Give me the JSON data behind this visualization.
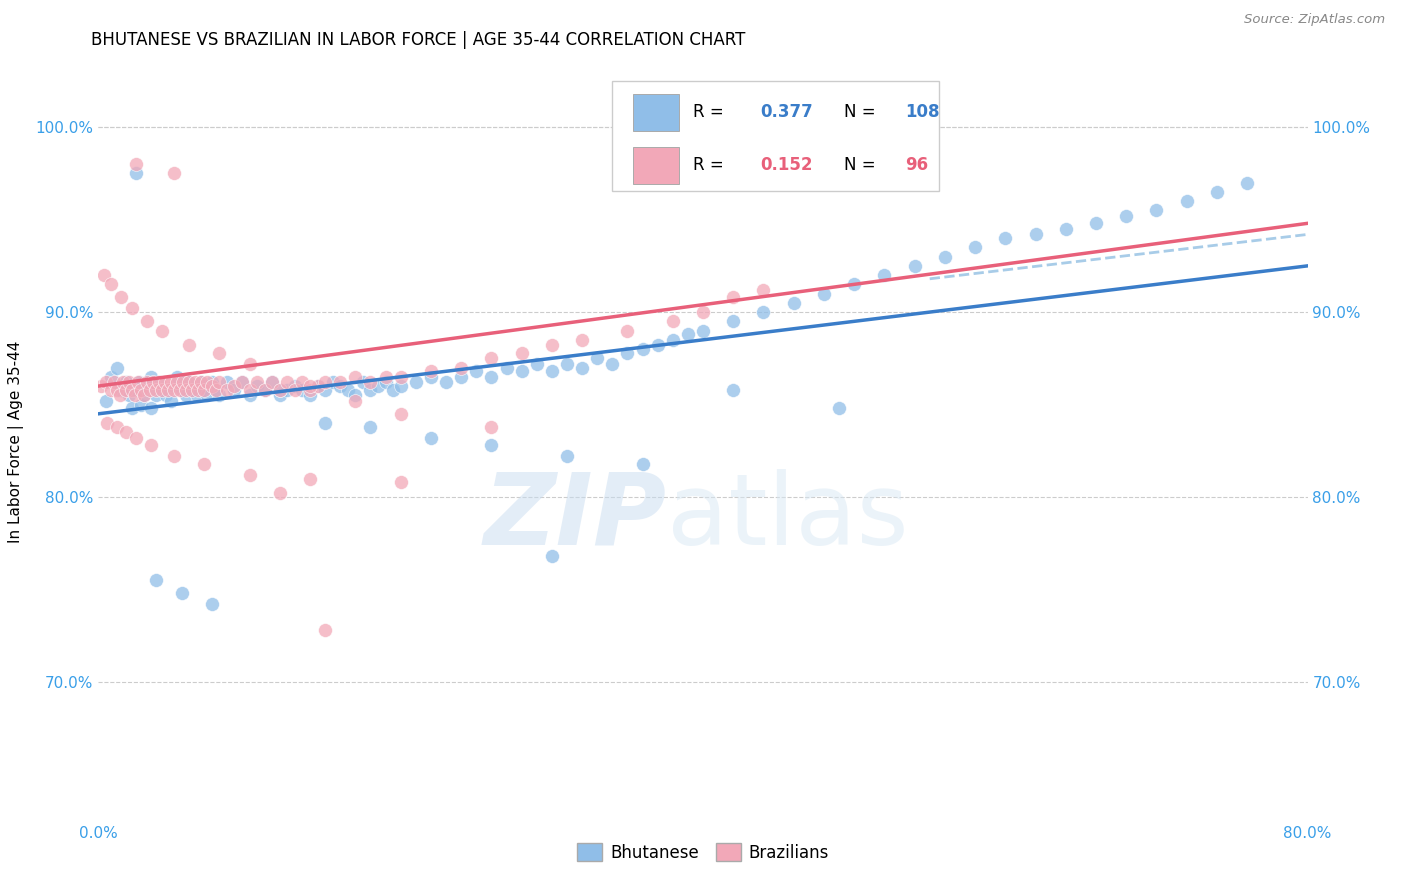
{
  "title": "BHUTANESE VS BRAZILIAN IN LABOR FORCE | AGE 35-44 CORRELATION CHART",
  "source": "Source: ZipAtlas.com",
  "ylabel": "In Labor Force | Age 35-44",
  "xlim": [
    0.0,
    0.8
  ],
  "ylim": [
    0.625,
    1.035
  ],
  "xticks": [
    0.0,
    0.1,
    0.2,
    0.3,
    0.4,
    0.5,
    0.6,
    0.7,
    0.8
  ],
  "xticklabels": [
    "0.0%",
    "",
    "",
    "",
    "",
    "",
    "",
    "",
    "80.0%"
  ],
  "yticks": [
    0.7,
    0.8,
    0.9,
    1.0
  ],
  "yticklabels": [
    "70.0%",
    "80.0%",
    "90.0%",
    "100.0%"
  ],
  "blue_color": "#90BEE8",
  "pink_color": "#F2A8B8",
  "trend_blue": "#3A7DC9",
  "trend_pink": "#E8607A",
  "trend_dashed_color": "#A8CCE8",
  "watermark_zip": "ZIP",
  "watermark_atlas": "atlas",
  "blue_scatter_x": [
    0.005,
    0.008,
    0.012,
    0.015,
    0.018,
    0.02,
    0.022,
    0.025,
    0.027,
    0.028,
    0.03,
    0.032,
    0.035,
    0.035,
    0.038,
    0.04,
    0.042,
    0.045,
    0.048,
    0.05,
    0.052,
    0.055,
    0.058,
    0.06,
    0.062,
    0.065,
    0.068,
    0.07,
    0.072,
    0.075,
    0.078,
    0.08,
    0.085,
    0.09,
    0.095,
    0.1,
    0.105,
    0.11,
    0.115,
    0.12,
    0.125,
    0.13,
    0.135,
    0.14,
    0.145,
    0.15,
    0.155,
    0.16,
    0.165,
    0.17,
    0.175,
    0.18,
    0.185,
    0.19,
    0.195,
    0.2,
    0.21,
    0.22,
    0.23,
    0.24,
    0.25,
    0.26,
    0.27,
    0.28,
    0.29,
    0.3,
    0.31,
    0.32,
    0.33,
    0.34,
    0.35,
    0.36,
    0.37,
    0.38,
    0.39,
    0.4,
    0.42,
    0.44,
    0.46,
    0.48,
    0.5,
    0.52,
    0.54,
    0.56,
    0.58,
    0.6,
    0.62,
    0.64,
    0.66,
    0.68,
    0.7,
    0.72,
    0.74,
    0.76,
    0.3,
    0.025,
    0.038,
    0.055,
    0.075,
    0.12,
    0.15,
    0.18,
    0.22,
    0.26,
    0.31,
    0.36,
    0.42,
    0.49
  ],
  "blue_scatter_y": [
    0.852,
    0.865,
    0.87,
    0.858,
    0.862,
    0.855,
    0.848,
    0.858,
    0.862,
    0.85,
    0.855,
    0.86,
    0.865,
    0.848,
    0.855,
    0.862,
    0.858,
    0.855,
    0.852,
    0.86,
    0.865,
    0.858,
    0.855,
    0.862,
    0.858,
    0.855,
    0.862,
    0.858,
    0.855,
    0.862,
    0.858,
    0.855,
    0.862,
    0.858,
    0.862,
    0.855,
    0.86,
    0.858,
    0.862,
    0.855,
    0.858,
    0.86,
    0.858,
    0.855,
    0.86,
    0.858,
    0.862,
    0.86,
    0.858,
    0.855,
    0.862,
    0.858,
    0.86,
    0.862,
    0.858,
    0.86,
    0.862,
    0.865,
    0.862,
    0.865,
    0.868,
    0.865,
    0.87,
    0.868,
    0.872,
    0.868,
    0.872,
    0.87,
    0.875,
    0.872,
    0.878,
    0.88,
    0.882,
    0.885,
    0.888,
    0.89,
    0.895,
    0.9,
    0.905,
    0.91,
    0.915,
    0.92,
    0.925,
    0.93,
    0.935,
    0.94,
    0.942,
    0.945,
    0.948,
    0.952,
    0.955,
    0.96,
    0.965,
    0.97,
    0.768,
    0.975,
    0.755,
    0.748,
    0.742,
    0.858,
    0.84,
    0.838,
    0.832,
    0.828,
    0.822,
    0.818,
    0.858,
    0.848
  ],
  "pink_scatter_x": [
    0.002,
    0.005,
    0.008,
    0.01,
    0.012,
    0.014,
    0.016,
    0.018,
    0.02,
    0.022,
    0.024,
    0.026,
    0.028,
    0.03,
    0.032,
    0.034,
    0.036,
    0.038,
    0.04,
    0.042,
    0.044,
    0.046,
    0.048,
    0.05,
    0.052,
    0.054,
    0.056,
    0.058,
    0.06,
    0.062,
    0.064,
    0.066,
    0.068,
    0.07,
    0.072,
    0.075,
    0.078,
    0.08,
    0.085,
    0.09,
    0.095,
    0.1,
    0.105,
    0.11,
    0.115,
    0.12,
    0.125,
    0.13,
    0.135,
    0.14,
    0.145,
    0.15,
    0.16,
    0.17,
    0.18,
    0.19,
    0.2,
    0.22,
    0.24,
    0.26,
    0.28,
    0.3,
    0.32,
    0.35,
    0.38,
    0.4,
    0.42,
    0.44,
    0.006,
    0.012,
    0.018,
    0.025,
    0.035,
    0.05,
    0.07,
    0.1,
    0.004,
    0.008,
    0.015,
    0.022,
    0.032,
    0.042,
    0.06,
    0.08,
    0.1,
    0.14,
    0.17,
    0.2,
    0.26,
    0.14,
    0.2,
    0.12,
    0.025,
    0.05,
    0.15
  ],
  "pink_scatter_y": [
    0.86,
    0.862,
    0.858,
    0.862,
    0.858,
    0.855,
    0.862,
    0.858,
    0.862,
    0.858,
    0.855,
    0.862,
    0.858,
    0.855,
    0.862,
    0.858,
    0.862,
    0.858,
    0.862,
    0.858,
    0.862,
    0.858,
    0.862,
    0.858,
    0.862,
    0.858,
    0.862,
    0.858,
    0.862,
    0.858,
    0.862,
    0.858,
    0.862,
    0.858,
    0.862,
    0.86,
    0.858,
    0.862,
    0.858,
    0.86,
    0.862,
    0.858,
    0.862,
    0.858,
    0.862,
    0.858,
    0.862,
    0.858,
    0.862,
    0.858,
    0.86,
    0.862,
    0.862,
    0.865,
    0.862,
    0.865,
    0.865,
    0.868,
    0.87,
    0.875,
    0.878,
    0.882,
    0.885,
    0.89,
    0.895,
    0.9,
    0.908,
    0.912,
    0.84,
    0.838,
    0.835,
    0.832,
    0.828,
    0.822,
    0.818,
    0.812,
    0.92,
    0.915,
    0.908,
    0.902,
    0.895,
    0.89,
    0.882,
    0.878,
    0.872,
    0.86,
    0.852,
    0.845,
    0.838,
    0.81,
    0.808,
    0.802,
    0.98,
    0.975,
    0.728
  ],
  "figsize": [
    14.06,
    8.92
  ],
  "dpi": 100
}
